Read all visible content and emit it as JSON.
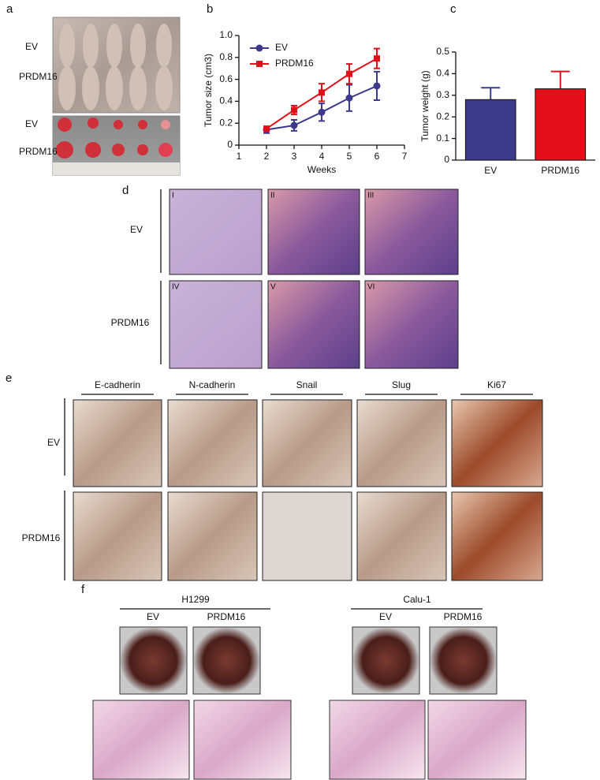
{
  "panel_labels": [
    "a",
    "b",
    "c",
    "d",
    "e",
    "f"
  ],
  "panel_a": {
    "rows": [
      "EV",
      "PRDM16",
      "EV",
      "PRDM16"
    ]
  },
  "chart_data": [
    {
      "type": "line",
      "xlabel": "Weeks",
      "ylabel": "Tumor size (cm3)",
      "x": [
        2,
        3,
        4,
        5,
        6
      ],
      "series": [
        {
          "name": "EV",
          "color": "#3d3a8c",
          "marker": "circle",
          "values": [
            0.14,
            0.18,
            0.3,
            0.43,
            0.54
          ],
          "errors": [
            0.03,
            0.05,
            0.08,
            0.12,
            0.13
          ]
        },
        {
          "name": "PRDM16",
          "color": "#e0101a",
          "marker": "square",
          "values": [
            0.15,
            0.32,
            0.48,
            0.65,
            0.79
          ],
          "errors": [
            0.02,
            0.04,
            0.08,
            0.09,
            0.09
          ]
        }
      ],
      "xlim": [
        1,
        7
      ],
      "xticks": [
        1,
        2,
        3,
        4,
        5,
        6,
        7
      ],
      "ylim": [
        0,
        1
      ],
      "yticks": [
        0,
        0.2,
        0.4,
        0.6,
        0.8,
        {
          "value": 1,
          "label": "1.0"
        }
      ],
      "legend": "upper left"
    },
    {
      "type": "bar",
      "ylabel": "Tumor weight (g)",
      "categories": [
        "EV",
        "PRDM16"
      ],
      "values": [
        0.28,
        0.33
      ],
      "errors": [
        0.055,
        0.08
      ],
      "colors": [
        "#3d3a8c",
        "#e3101b"
      ],
      "ylim": [
        0,
        0.5
      ],
      "yticks": [
        0,
        0.1,
        0.2,
        0.3,
        0.4,
        0.5
      ]
    }
  ],
  "panel_d": {
    "rows": [
      "EV",
      "PRDM16"
    ],
    "images": [
      "I",
      "II",
      "III",
      "IV",
      "V",
      "VI"
    ]
  },
  "panel_e": {
    "columns": [
      "E-cadherin",
      "N-cadherin",
      "Snail",
      "Slug",
      "Ki67"
    ],
    "rows": [
      "EV",
      "PRDM16"
    ]
  },
  "panel_f": {
    "groups": [
      {
        "name": "H1299",
        "columns": [
          "EV",
          "PRDM16"
        ]
      },
      {
        "name": "Calu-1",
        "columns": [
          "EV",
          "PRDM16"
        ]
      }
    ]
  }
}
